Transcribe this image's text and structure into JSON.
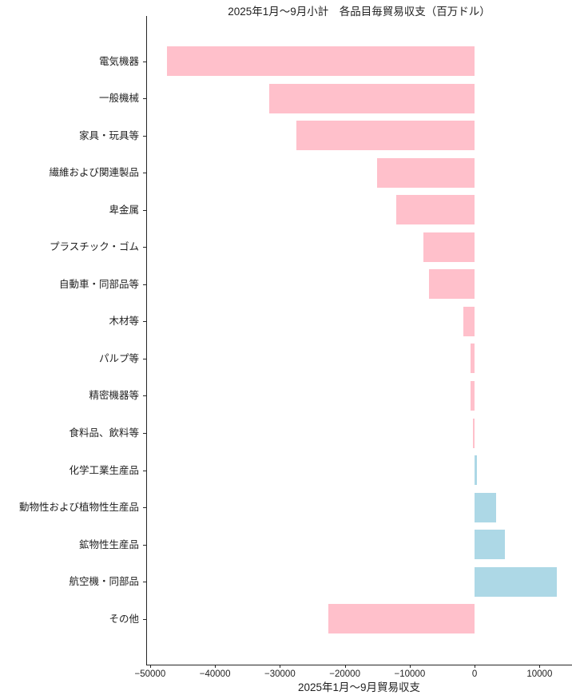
{
  "chart_data": {
    "type": "bar",
    "orientation": "horizontal",
    "title": "2025年1月～9月小計　各品目毎貿易収支（百万ドル）",
    "xlabel": "2025年1月～9月貿易収支",
    "ylabel": "",
    "unit": "百万ドル",
    "grid": false,
    "legend": "none",
    "categories": [
      "電気機器",
      "一般機械",
      "家具・玩具等",
      "繊維および関連製品",
      "卑金属",
      "プラスチック・ゴム",
      "自動車・同部品等",
      "木材等",
      "パルプ等",
      "精密機器等",
      "食料品、飲料等",
      "化学工業生産品",
      "動物性および植物性生産品",
      "鉱物性生産品",
      "航空機・同部品",
      "その他"
    ],
    "values": [
      -47400,
      -31600,
      -27500,
      -15000,
      -12100,
      -7900,
      -7000,
      -1800,
      -600,
      -600,
      -300,
      300,
      3300,
      4600,
      12600,
      -22500
    ],
    "xlim": [
      -50600,
      15000
    ],
    "xticks": [
      -50000,
      -40000,
      -30000,
      -20000,
      -10000,
      0,
      10000
    ],
    "xtick_labels": [
      "−50000",
      "−40000",
      "−30000",
      "−20000",
      "−10000",
      "0",
      "10000"
    ],
    "colors": {
      "negative": "#ffc0cb",
      "positive": "#add8e6",
      "axis": "#262626",
      "text": "#1f1f1f",
      "background": "#ffffff"
    }
  }
}
